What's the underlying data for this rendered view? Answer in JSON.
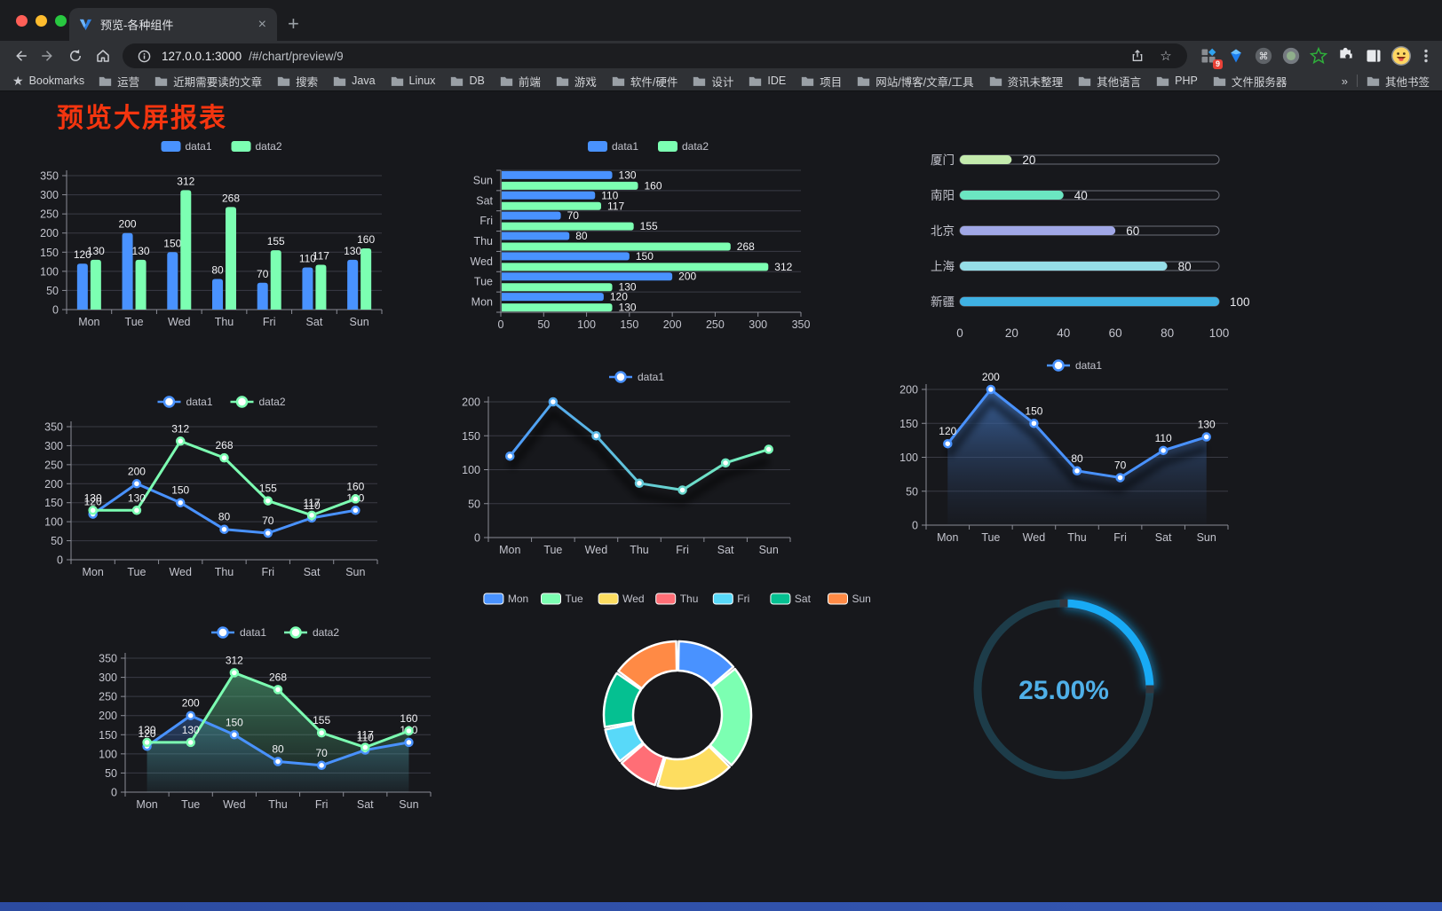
{
  "browser": {
    "tab": {
      "title": "预览-各种组件",
      "close_glyph": "×",
      "new_tab_glyph": "+"
    },
    "url": {
      "host": "127.0.0.1:3000",
      "path": "/#/chart/preview/9"
    },
    "extensions_badge": "9",
    "bookmarks_bar": {
      "bookmarks_label": "Bookmarks",
      "folders": [
        "运营",
        "近期需要读的文章",
        "搜索",
        "Java",
        "Linux",
        "DB",
        "前端",
        "游戏",
        "软件/硬件",
        "设计",
        "IDE",
        "项目",
        "网站/博客/文章/工具",
        "资讯未整理",
        "其他语言",
        "PHP",
        "文件服务器"
      ],
      "overflow_glyph": "»",
      "other_bookmarks": "其他书签"
    }
  },
  "page": {
    "title": "预览大屏报表",
    "title_color": "#f5350f",
    "background": "#17181c"
  },
  "chart_data": [
    {
      "id": "bar",
      "type": "bar",
      "categories": [
        "Mon",
        "Tue",
        "Wed",
        "Thu",
        "Fri",
        "Sat",
        "Sun"
      ],
      "series": [
        {
          "name": "data1",
          "color": "#4992ff",
          "values": [
            120,
            200,
            150,
            80,
            70,
            110,
            130
          ]
        },
        {
          "name": "data2",
          "color": "#7cffb2",
          "values": [
            130,
            130,
            312,
            268,
            155,
            117,
            160
          ]
        }
      ],
      "yticks": [
        0,
        50,
        100,
        150,
        200,
        250,
        300,
        350
      ],
      "labels": true,
      "legend_position": "top"
    },
    {
      "id": "hbar",
      "type": "hbar",
      "categories": [
        "Mon",
        "Tue",
        "Wed",
        "Thu",
        "Fri",
        "Sat",
        "Sun"
      ],
      "y_order_top_to_bottom": [
        "Sun",
        "Sat",
        "Fri",
        "Thu",
        "Wed",
        "Tue",
        "Mon"
      ],
      "series": [
        {
          "name": "data1",
          "color": "#4992ff",
          "values": [
            120,
            200,
            150,
            80,
            70,
            110,
            130
          ]
        },
        {
          "name": "data2",
          "color": "#7cffb2",
          "values": [
            130,
            130,
            312,
            268,
            155,
            117,
            160
          ]
        }
      ],
      "xticks": [
        0,
        50,
        100,
        150,
        200,
        250,
        300,
        350
      ],
      "labels": true,
      "legend_position": "top"
    },
    {
      "id": "progress",
      "type": "progress",
      "max": 100,
      "xticks": [
        0,
        20,
        40,
        60,
        80,
        100
      ],
      "rows": [
        {
          "label": "厦门",
          "value": 20,
          "color": "#c4ebad"
        },
        {
          "label": "南阳",
          "value": 40,
          "color": "#6be6c1"
        },
        {
          "label": "北京",
          "value": 60,
          "color": "#a0a7e6"
        },
        {
          "label": "上海",
          "value": 80,
          "color": "#96dee8"
        },
        {
          "label": "新疆",
          "value": 100,
          "color": "#3fb1e3"
        }
      ]
    },
    {
      "id": "line2",
      "type": "line",
      "categories": [
        "Mon",
        "Tue",
        "Wed",
        "Thu",
        "Fri",
        "Sat",
        "Sun"
      ],
      "series": [
        {
          "name": "data1",
          "color": "#4992ff",
          "values": [
            120,
            200,
            150,
            80,
            70,
            110,
            130
          ]
        },
        {
          "name": "data2",
          "color": "#7cffb2",
          "values": [
            130,
            130,
            312,
            268,
            155,
            117,
            160
          ]
        }
      ],
      "yticks": [
        0,
        50,
        100,
        150,
        200,
        250,
        300,
        350
      ],
      "labels": true
    },
    {
      "id": "gradline",
      "type": "line",
      "categories": [
        "Mon",
        "Tue",
        "Wed",
        "Thu",
        "Fri",
        "Sat",
        "Sun"
      ],
      "series": [
        {
          "name": "data1",
          "gradient": [
            "#4992ff",
            "#7cffb2"
          ],
          "values": [
            120,
            200,
            150,
            80,
            70,
            110,
            130
          ]
        }
      ],
      "yticks": [
        0,
        50,
        100,
        150,
        200
      ],
      "labels": false,
      "shadow": true
    },
    {
      "id": "area1",
      "type": "line",
      "categories": [
        "Mon",
        "Tue",
        "Wed",
        "Thu",
        "Fri",
        "Sat",
        "Sun"
      ],
      "series": [
        {
          "name": "data1",
          "color": "#4992ff",
          "values": [
            120,
            200,
            150,
            80,
            70,
            110,
            130
          ],
          "area": [
            "rgba(64,112,180,0.85)",
            "rgba(40,60,95,0.05)"
          ]
        }
      ],
      "yticks": [
        0,
        50,
        100,
        150,
        200
      ],
      "labels": true,
      "shadow": true
    },
    {
      "id": "linearea2",
      "type": "line",
      "categories": [
        "Mon",
        "Tue",
        "Wed",
        "Thu",
        "Fri",
        "Sat",
        "Sun"
      ],
      "series": [
        {
          "name": "data1",
          "color": "#4992ff",
          "values": [
            120,
            200,
            150,
            80,
            70,
            110,
            130
          ],
          "area": [
            "rgba(73,146,255,0.50)",
            "rgba(73,146,255,0.03)"
          ]
        },
        {
          "name": "data2",
          "color": "#7cffb2",
          "values": [
            130,
            130,
            312,
            268,
            155,
            117,
            160
          ],
          "area": [
            "rgba(90,200,140,0.55)",
            "rgba(90,200,140,0.03)"
          ]
        }
      ],
      "yticks": [
        0,
        50,
        100,
        150,
        200,
        250,
        300,
        350
      ],
      "labels": true
    },
    {
      "id": "donut",
      "type": "donut",
      "slices": [
        {
          "label": "Mon",
          "value": 120,
          "color": "#4992ff"
        },
        {
          "label": "Tue",
          "value": 200,
          "color": "#7cffb2"
        },
        {
          "label": "Wed",
          "value": 150,
          "color": "#fddd60"
        },
        {
          "label": "Thu",
          "value": 80,
          "color": "#ff6e76"
        },
        {
          "label": "Fri",
          "value": 70,
          "color": "#58d9f9"
        },
        {
          "label": "Sat",
          "value": 110,
          "color": "#05c091"
        },
        {
          "label": "Sun",
          "value": 130,
          "color": "#ff8a45"
        }
      ]
    },
    {
      "id": "gauge",
      "type": "gauge",
      "value": 25,
      "display": "25.00%",
      "color": "#18aaf5",
      "track": "#1d3c49",
      "text_color": "#4fb0e8"
    }
  ]
}
